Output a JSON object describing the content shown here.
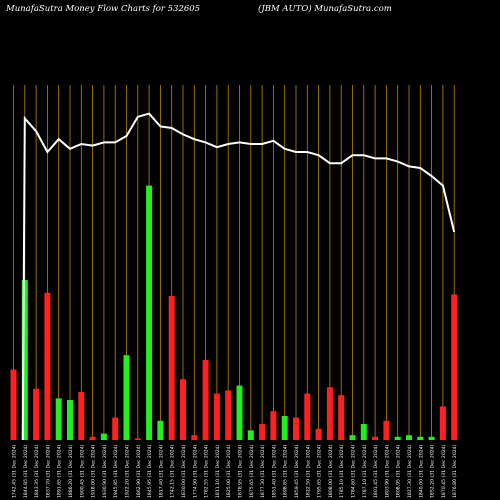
{
  "header": {
    "left": "MunafaSutra  Money Flow  Charts for 532605",
    "right": "(JBM AUTO) MunafaSutra.com"
  },
  "chart_data": {
    "type": "bar",
    "title": "MunafaSutra  Money Flow  Charts for 532605",
    "subtitle": "(JBM AUTO) MunafaSutra.com",
    "categories": [
      "Fri 22 Nov 2024",
      "Thu 21 Nov 2024",
      "Tue 19 Nov 2024",
      "Mon 18 Nov 2024",
      "Thu 14 Nov 2024",
      "Wed 13 Nov 2024",
      "Tue 12 Nov 2024",
      "Mon 11 Nov 2024",
      "Fri 08 Nov 2024",
      "Thu 07 Nov 2024",
      "Wed 06 Nov 2024",
      "Tue 05 Nov 2024",
      "Mon 04 Nov 2024",
      "Fri 01 Nov 2024",
      "Thu 31 Oct 2024",
      "Wed 30 Oct 2024",
      "Tue 29 Oct 2024",
      "Mon 28 Oct 2024",
      "Fri 25 Oct 2024",
      "Thu 24 Oct 2024",
      "Wed 23 Oct 2024",
      "Tue 22 Oct 2024",
      "Mon 21 Oct 2024",
      "Fri 18 Oct 2024",
      "Thu 17 Oct 2024",
      "Wed 16 Oct 2024",
      "Tue 15 Oct 2024",
      "Mon 14 Oct 2024",
      "Fri 11 Oct 2024",
      "Thu 10 Oct 2024",
      "Wed 09 Oct 2024",
      "Tue 08 Oct 2024",
      "Mon 07 Oct 2024",
      "Fri 04 Oct 2024",
      "Thu 03 Oct 2024",
      "Tue 01 Oct 2024",
      "Mon 30 Sep 2024",
      "Fri 27 Sep 2024",
      "Thu 26 Sep 2024",
      "Wed 25 Sep 2024",
      "Tue 24 Sep 2024",
      "Mon 23 Sep 2024",
      "Fri 20 Sep 2024",
      "Thu 19 Sep 2024",
      "Wed 18 Sep 2024",
      "Tue 17 Sep 2024",
      "Mon 16 Sep 2024",
      "Fri 13 Sep 2024",
      "Thu 12 Sep 2024",
      "Wed 11 Sep 2024",
      "Tue 10 Sep 2024",
      "Mon 09 Sep 2024",
      "Fri 06 Sep 2024"
    ],
    "x_labels": [
      "1742.45 (31 Dec 2024)",
      "1844.85 (31 Dec 2024)",
      "1843.35 (31 Dec 2024)",
      "1837.70 (31 Dec 2024)",
      "1891.65 (31 Dec 2024)",
      "1886.20 (31 Dec 2024)",
      "1900.45 (31 Dec 2024)",
      "1918.00 (31 Dec 2024)",
      "1930.90 (31 Dec 2024)",
      "1945.85 (31 Dec 2024)",
      "1922.20 (31 Dec 2024)",
      "1862.90 (31 Dec 2024)",
      "1845.95 (31 Dec 2024)",
      "1817.40 (31 Dec 2024)",
      "1742.15 (31 Dec 2024)",
      "1830.00 (31 Dec 2024)",
      "1774.90 (31 Dec 2024)",
      "1782.55 (31 Dec 2024)",
      "1811.10 (31 Dec 2024)",
      "1825.00 (31 Dec 2024)",
      "1878.95 (31 Dec 2024)",
      "1875.65 (31 Dec 2024)",
      "1877.30 (31 Dec 2024)",
      "1851.40 (31 Dec 2024)",
      "1898.85 (31 Dec 2024)",
      "1859.45 (31 Dec 2024)",
      "1822.50 (31 Dec 2024)",
      "1795.65 (31 Dec 2024)",
      "1808.00 (31 Dec 2024)",
      "1785.10 (31 Dec 2024)",
      "1784.60 (31 Dec 2024)",
      "1787.10 (31 Dec 2024)",
      "1801.45 (31 Dec 2024)",
      "1803.90 (31 Dec 2024)",
      "1808.95 (31 Dec 2024)",
      "1827.30 (31 Dec 2024)",
      "1840.00 (31 Dec 2024)",
      "1852.20 (31 Dec 2024)",
      "1870.45 (31 Dec 2024)",
      "1876.80 (31 Dec 2024)",
      "1880.45 (31 Dec 2024)",
      "1920.15 (31 Dec 2024)",
      "1941.95 (31 Dec 2024)",
      "1939.10 (31 Dec 2024)",
      "1905.45 (31 Dec 2024)",
      "1938.50 (31 Dec 2024)",
      "1950.80 (31 Dec 2024)",
      "1961.00 (31 Dec 2024)",
      "1961.40 (31 Dec 2024)",
      "1981.70 (31 Dec 2024)",
      "2002.45 (31 Dec 2024)",
      "2025.05 (31 Dec 2024)",
      "2079.00 (31 Dec 2024)"
    ],
    "series": [
      {
        "values": [
          44,
          100,
          32,
          92,
          26,
          25,
          30,
          2,
          4,
          14,
          53,
          1,
          159,
          12,
          90,
          38,
          3,
          50,
          29,
          31,
          34,
          6,
          10,
          18,
          15,
          14,
          29,
          7,
          33,
          28,
          3,
          10,
          2,
          12,
          2,
          3,
          2,
          2,
          21,
          91,
          14,
          36,
          11,
          9,
          5,
          7,
          2,
          2,
          1,
          1,
          1,
          1,
          1
        ]
      },
      {
        "values": [
          null,
          201,
          193,
          180,
          188,
          182,
          185,
          184,
          186,
          186,
          190,
          202,
          204,
          196,
          195,
          191,
          188,
          186,
          183,
          185,
          186,
          185,
          185,
          187,
          182,
          180,
          180,
          178,
          173,
          173,
          178,
          178,
          176,
          176,
          174,
          171,
          170,
          165,
          159,
          130,
          128,
          127,
          126,
          125,
          125,
          124,
          124,
          123,
          123,
          122,
          122,
          121,
          121
        ]
      }
    ],
    "bar_colors": [
      "#ff2020",
      "#22ee22",
      "#ff2020",
      "#ff2020",
      "#22ee22",
      "#22ee22",
      "#ff2020",
      "#ff2020",
      "#22ee22",
      "#ff2020",
      "#22ee22",
      "#ff2020",
      "#22ee22",
      "#22ee22",
      "#ff2020",
      "#ff2020",
      "#ff2020",
      "#ff2020",
      "#ff2020",
      "#ff2020",
      "#22ee22",
      "#22ee22",
      "#ff2020",
      "#ff2020",
      "#22ee22",
      "#ff2020",
      "#ff2020",
      "#ff2020",
      "#ff2020",
      "#ff2020",
      "#22ee22",
      "#22ee22",
      "#ff2020",
      "#ff2020",
      "#22ee22",
      "#22ee22",
      "#22ee22",
      "#22ee22",
      "#ff2020",
      "#ff2020",
      "#22ee22",
      "#22ee22",
      "#22ee22",
      "#ff2020",
      "#22ee22",
      "#22ee22",
      "#ff2020",
      "#22ee22",
      "#22ee22",
      "#22ee22",
      "#22ee22",
      "#22ee22",
      "#22ee22"
    ],
    "grid": true,
    "colors": {
      "background": "#000000",
      "gridline": "#b8860b",
      "up": "#22ee22",
      "down": "#ff2020",
      "line": "#ffffff",
      "text": "#ffffff"
    }
  }
}
